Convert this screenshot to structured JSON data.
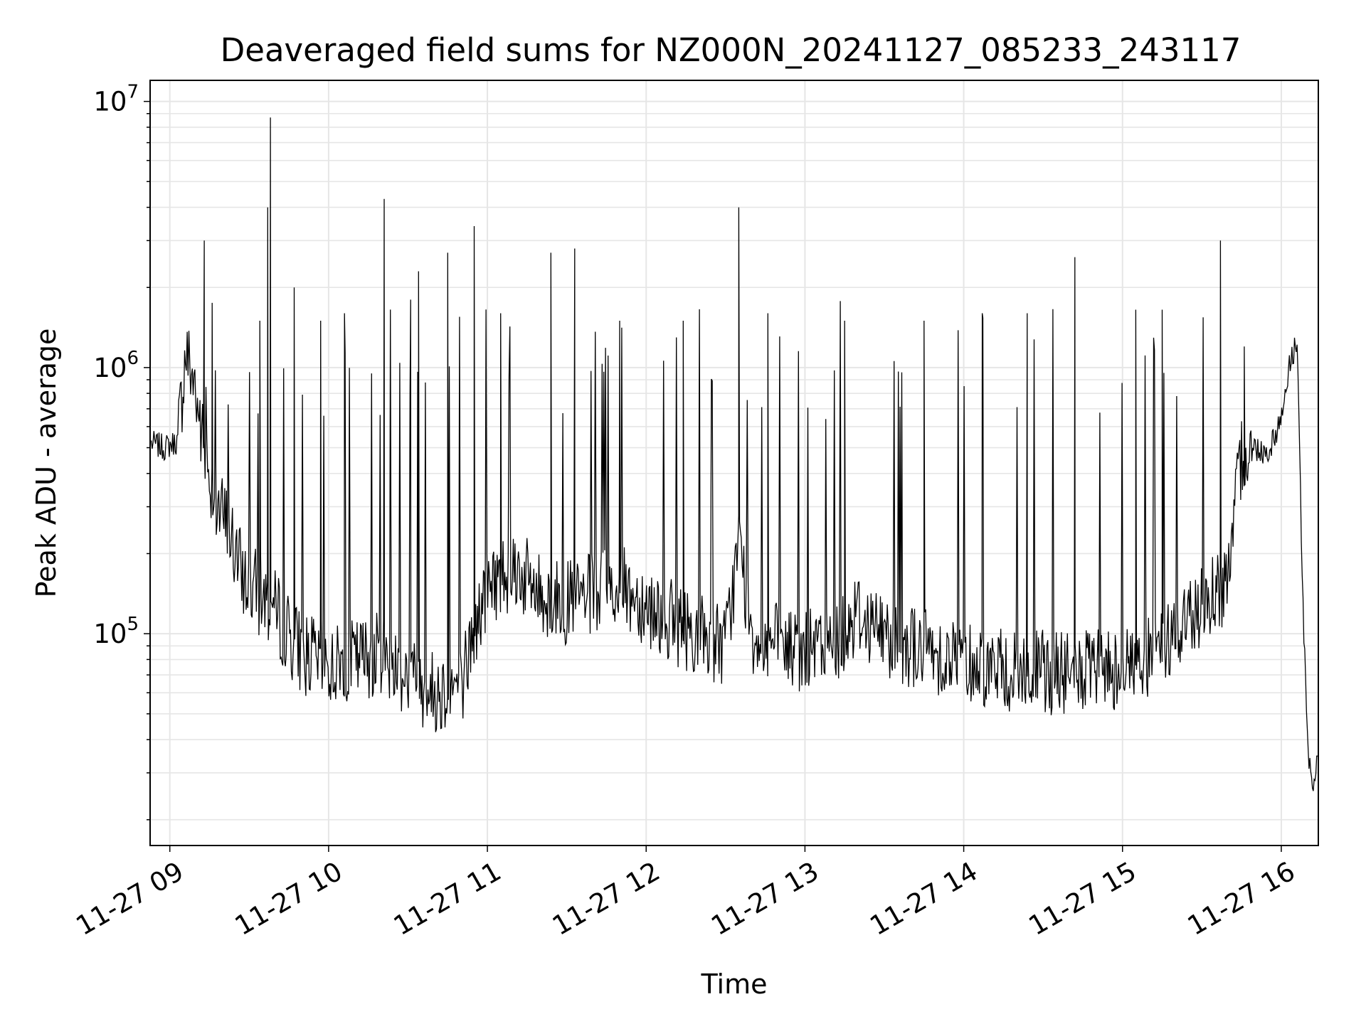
{
  "chart_data": {
    "type": "line",
    "title": "Deaveraged field sums for NZ000N_20241127_085233_243117",
    "xlabel": "Time",
    "ylabel": "Peak ADU - average",
    "yscale": "log",
    "ylim": [
      16000,
      12000000
    ],
    "xlim": [
      "2024-11-27 08:52:33",
      "2024-11-27 16:14:00"
    ],
    "grid": {
      "major": true,
      "minor_y": true,
      "color": "#e6e6e6"
    },
    "x_ticks": [
      "11-27 09",
      "11-27 10",
      "11-27 11",
      "11-27 12",
      "11-27 13",
      "11-27 14",
      "11-27 15",
      "11-27 16"
    ],
    "y_ticks": [
      {
        "base": "10",
        "exp": "5",
        "value": 100000
      },
      {
        "base": "10",
        "exp": "6",
        "value": 1000000
      },
      {
        "base": "10",
        "exp": "7",
        "value": 10000000
      }
    ],
    "line_color": "#000000",
    "series": [
      {
        "x": [
          "2024-11-27 08:53",
          "2024-11-27 08:58",
          "2024-11-27 09:03",
          "2024-11-27 09:06",
          "2024-11-27 09:09",
          "2024-11-27 09:13",
          "2024-11-27 09:18",
          "2024-11-27 09:22",
          "2024-11-27 09:26",
          "2024-11-27 09:30",
          "2024-11-27 09:35",
          "2024-11-27 09:40",
          "2024-11-27 09:45",
          "2024-11-27 09:50",
          "2024-11-27 09:55",
          "2024-11-27 10:00",
          "2024-11-27 10:10",
          "2024-11-27 10:20",
          "2024-11-27 10:30",
          "2024-11-27 10:40",
          "2024-11-27 10:50",
          "2024-11-27 11:00",
          "2024-11-27 11:10",
          "2024-11-27 11:20",
          "2024-11-27 11:30",
          "2024-11-27 11:40",
          "2024-11-27 11:50",
          "2024-11-27 12:00",
          "2024-11-27 12:10",
          "2024-11-27 12:20",
          "2024-11-27 12:30",
          "2024-11-27 12:35",
          "2024-11-27 12:40",
          "2024-11-27 12:50",
          "2024-11-27 13:00",
          "2024-11-27 13:10",
          "2024-11-27 13:20",
          "2024-11-27 13:30",
          "2024-11-27 13:40",
          "2024-11-27 13:50",
          "2024-11-27 14:00",
          "2024-11-27 14:10",
          "2024-11-27 14:20",
          "2024-11-27 14:30",
          "2024-11-27 14:40",
          "2024-11-27 14:50",
          "2024-11-27 15:00",
          "2024-11-27 15:10",
          "2024-11-27 15:20",
          "2024-11-27 15:30",
          "2024-11-27 15:40",
          "2024-11-27 15:45",
          "2024-11-27 15:50",
          "2024-11-27 15:55",
          "2024-11-27 16:00",
          "2024-11-27 16:03",
          "2024-11-27 16:06",
          "2024-11-27 16:08",
          "2024-11-27 16:10",
          "2024-11-27 16:12",
          "2024-11-27 16:14"
        ],
        "y": [
          520000,
          500000,
          530000,
          1150000,
          900000,
          480000,
          300000,
          250000,
          180000,
          150000,
          140000,
          120000,
          100000,
          85000,
          80000,
          75000,
          80000,
          85000,
          70000,
          60000,
          65000,
          150000,
          180000,
          140000,
          130000,
          140000,
          150000,
          130000,
          110000,
          100000,
          90000,
          220000,
          100000,
          90000,
          85000,
          90000,
          120000,
          100000,
          90000,
          85000,
          80000,
          75000,
          70000,
          72000,
          70000,
          72000,
          75000,
          80000,
          100000,
          130000,
          160000,
          480000,
          500000,
          480000,
          650000,
          1000000,
          1300000,
          150000,
          35000,
          25000,
          40000
        ],
        "spikes": [
          {
            "x": "2024-11-27 09:13",
            "y": 3000000
          },
          {
            "x": "2024-11-27 09:16",
            "y": 1750000
          },
          {
            "x": "2024-11-27 09:34",
            "y": 1500000
          },
          {
            "x": "2024-11-27 09:37",
            "y": 4000000
          },
          {
            "x": "2024-11-27 09:38",
            "y": 8700000
          },
          {
            "x": "2024-11-27 09:47",
            "y": 2000000
          },
          {
            "x": "2024-11-27 09:57",
            "y": 1500000
          },
          {
            "x": "2024-11-27 10:06",
            "y": 1600000
          },
          {
            "x": "2024-11-27 10:21",
            "y": 4300000
          },
          {
            "x": "2024-11-27 10:31",
            "y": 1800000
          },
          {
            "x": "2024-11-27 10:34",
            "y": 2300000
          },
          {
            "x": "2024-11-27 10:45",
            "y": 2700000
          },
          {
            "x": "2024-11-27 10:55",
            "y": 3400000
          },
          {
            "x": "2024-11-27 11:05",
            "y": 1600000
          },
          {
            "x": "2024-11-27 11:24",
            "y": 2700000
          },
          {
            "x": "2024-11-27 11:33",
            "y": 2800000
          },
          {
            "x": "2024-11-27 11:50",
            "y": 1500000
          },
          {
            "x": "2024-11-27 12:14",
            "y": 1500000
          },
          {
            "x": "2024-11-27 12:35",
            "y": 4000000
          },
          {
            "x": "2024-11-27 12:46",
            "y": 1600000
          },
          {
            "x": "2024-11-27 13:15",
            "y": 1500000
          },
          {
            "x": "2024-11-27 13:45",
            "y": 1500000
          },
          {
            "x": "2024-11-27 14:07",
            "y": 1600000
          },
          {
            "x": "2024-11-27 14:24",
            "y": 1600000
          },
          {
            "x": "2024-11-27 14:42",
            "y": 2600000
          },
          {
            "x": "2024-11-27 15:05",
            "y": 1650000
          },
          {
            "x": "2024-11-27 15:15",
            "y": 1650000
          },
          {
            "x": "2024-11-27 15:37",
            "y": 3000000
          },
          {
            "x": "2024-11-27 15:46",
            "y": 1200000
          }
        ]
      }
    ]
  }
}
